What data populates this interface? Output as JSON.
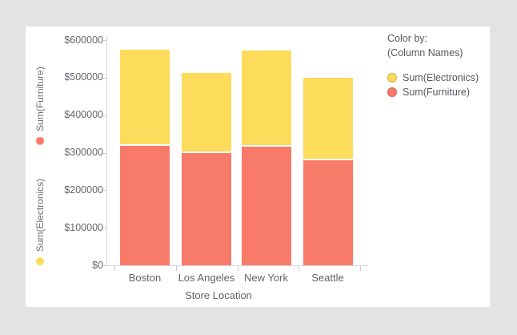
{
  "colors": {
    "background": "#e3e3e3",
    "card": "#ffffff",
    "furniture": "#F87A68",
    "electronics": "#FDDB5B",
    "axis_line": "#d6d8e1",
    "tick_text": "#63676f"
  },
  "legend": {
    "title_line1": "Color by:",
    "title_line2": "(Column Names)",
    "items": [
      {
        "label": "Sum(Electronics)",
        "color": "#FDDB5B"
      },
      {
        "label": "Sum(Furniture)",
        "color": "#F87A68"
      }
    ]
  },
  "y_axis": {
    "tick_labels": [
      "$600000",
      "$500000",
      "$400000",
      "$300000",
      "$200000",
      "$100000",
      "$0"
    ],
    "measures": [
      {
        "label": "Sum(Furniture)",
        "color": "#F87A68"
      },
      {
        "label": "Sum(Electronics)",
        "color": "#FDDB5B"
      }
    ]
  },
  "x_axis": {
    "title": "Store Location",
    "categories": [
      "Boston",
      "Los Angeles",
      "New York",
      "Seattle"
    ]
  },
  "chart_data": {
    "type": "bar",
    "stacked": true,
    "categories": [
      "Boston",
      "Los Angeles",
      "New York",
      "Seattle"
    ],
    "series": [
      {
        "name": "Sum(Furniture)",
        "color": "#F87A68",
        "values": [
          320000,
          301000,
          318000,
          281000
        ]
      },
      {
        "name": "Sum(Electronics)",
        "color": "#FDDB5B",
        "values": [
          255000,
          212000,
          255000,
          217000
        ]
      }
    ],
    "totals": [
      575000,
      513000,
      573000,
      498000
    ],
    "ylim": [
      0,
      600000
    ],
    "y_tick_step": 100000,
    "xlabel": "Store Location",
    "legend_position": "right",
    "grid": false
  }
}
